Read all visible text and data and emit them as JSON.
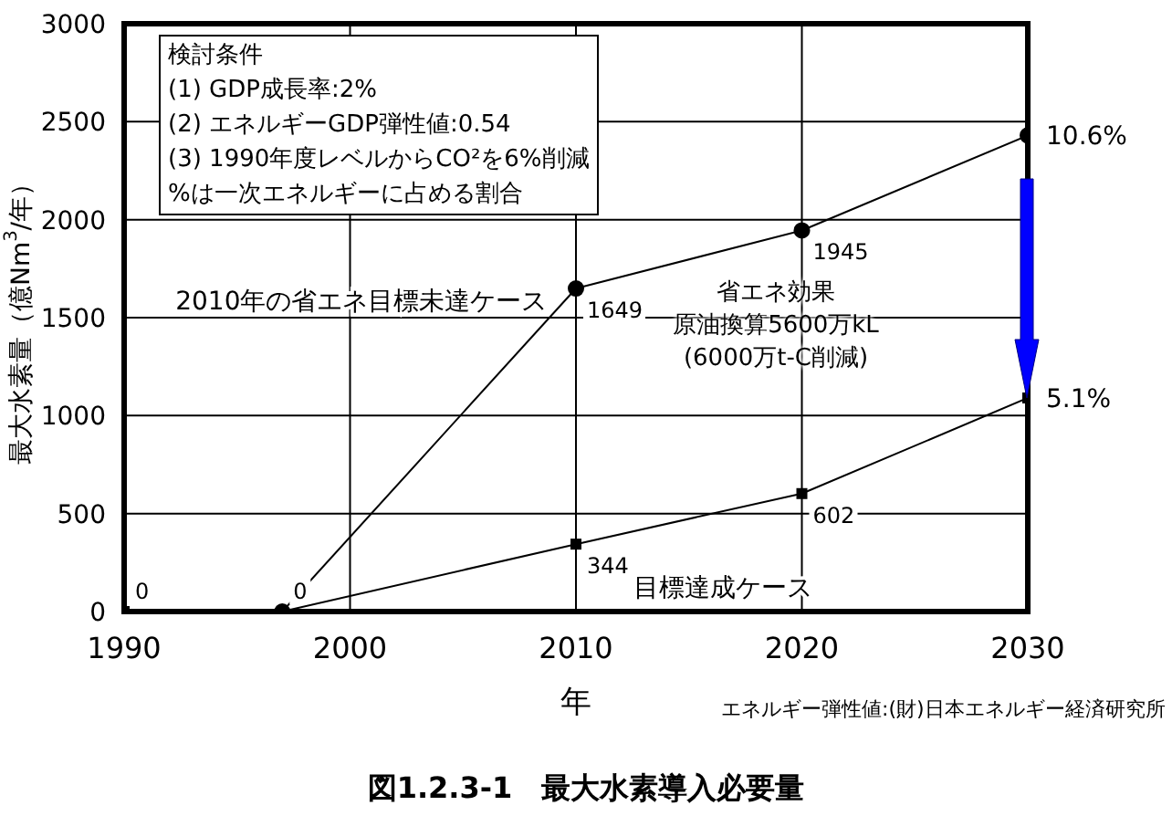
{
  "chart_data": {
    "type": "line",
    "title": "図1.2.3-1　最大水素導入必要量",
    "xlabel": "年",
    "ylabel": "最大水素量（億Nm$^{3}$/年）",
    "x": [
      1990,
      1997,
      2010,
      2020,
      2030
    ],
    "series": [
      {
        "name": "2010年の省エネ目標未達ケース",
        "color": "#000000",
        "marker": "circle",
        "x": [
          1997,
          2010,
          2020,
          2030
        ],
        "values": [
          0,
          1649,
          1945,
          2430
        ],
        "value_labels": [
          null,
          "1649",
          "1945",
          null
        ]
      },
      {
        "name": "目標達成ケース",
        "color": "#000000",
        "marker": "square",
        "values": [
          0,
          0,
          344,
          602,
          1090
        ],
        "value_labels": [
          "0",
          "0",
          "344",
          "602",
          null
        ]
      }
    ],
    "xlim": [
      1990,
      2030
    ],
    "xticks": [
      1990,
      2000,
      2010,
      2020,
      2030
    ],
    "ylim": [
      0,
      3000
    ],
    "yticks": [
      0,
      500,
      1000,
      1500,
      2000,
      2500,
      3000
    ],
    "grid": true,
    "legend": false,
    "line_style": "solid",
    "annotations": [
      "検討条件\n(1) GDP成長率:2%\n(2) エネルギーGDP弾性値:0.54\n(3) 1990年度レベルからCO²を6%削減\n%は一次エネルギーに占める割合",
      "省エネ効果",
      "原油換算5600万kL",
      "(6000万t-C削減)",
      "エネルギー弾性値:(財)日本エネルギー経済研究所",
      {
        "text": "10.6%",
        "x": 2030,
        "y": 2430
      },
      {
        "text": "5.1%",
        "x": 2030,
        "y": 1090
      }
    ]
  }
}
